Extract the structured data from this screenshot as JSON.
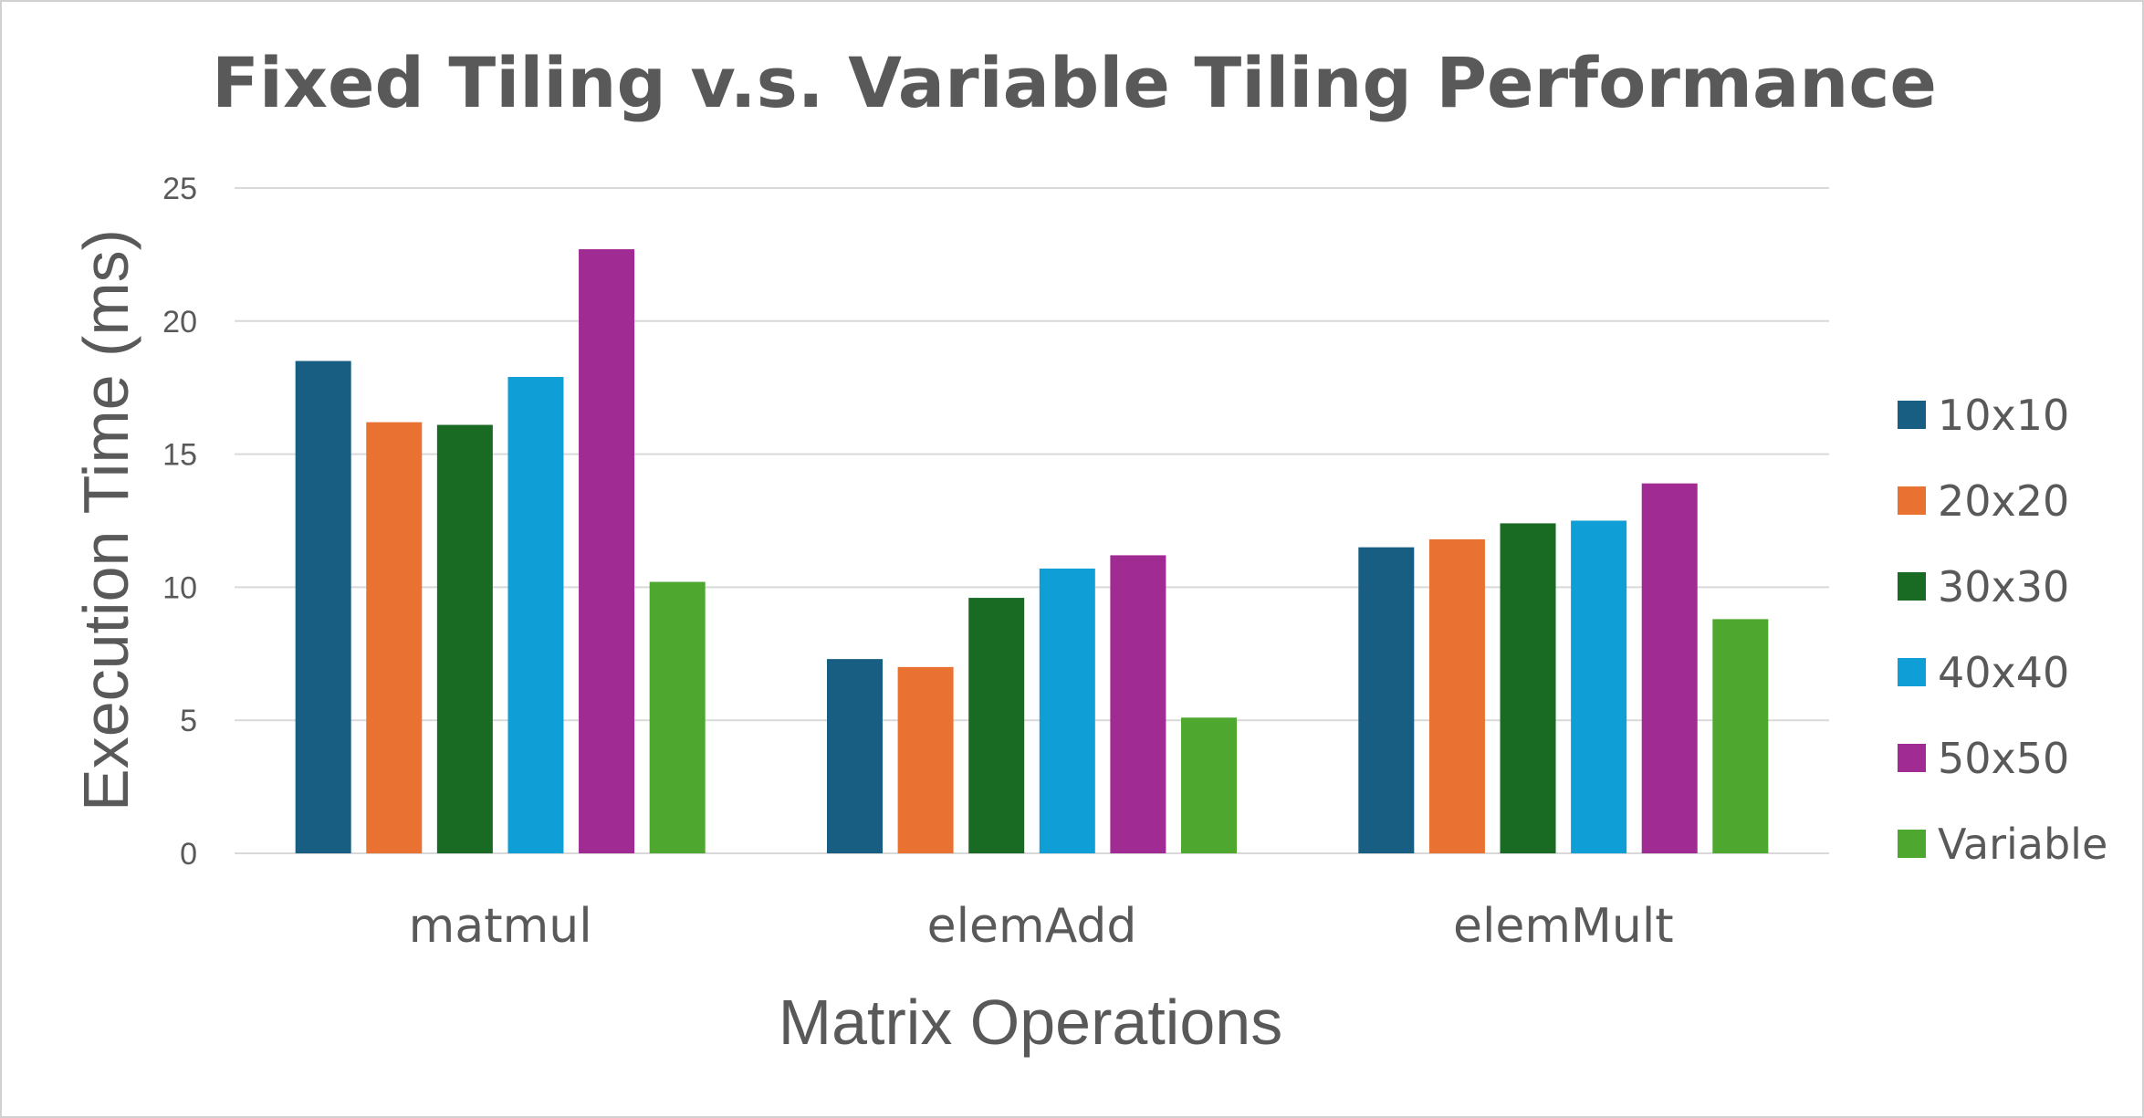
{
  "chart_data": {
    "type": "bar",
    "title": "Fixed Tiling v.s. Variable Tiling Performance",
    "xlabel": "Matrix Operations",
    "ylabel": "Execution Time (ms)",
    "ylim": [
      0,
      25
    ],
    "yticks": [
      0,
      5,
      10,
      15,
      20,
      25
    ],
    "grid": true,
    "legend_position": "right",
    "categories": [
      "matmul",
      "elemAdd",
      "elemMult"
    ],
    "series": [
      {
        "name": "10x10",
        "color": "#175e82",
        "values": [
          18.5,
          7.3,
          11.5
        ]
      },
      {
        "name": "20x20",
        "color": "#e97132",
        "values": [
          16.2,
          7.0,
          11.8
        ]
      },
      {
        "name": "30x30",
        "color": "#196b24",
        "values": [
          16.1,
          9.6,
          12.4
        ]
      },
      {
        "name": "40x40",
        "color": "#0f9ed5",
        "values": [
          17.9,
          10.7,
          12.5
        ]
      },
      {
        "name": "50x50",
        "color": "#a02b93",
        "values": [
          22.7,
          11.2,
          13.9
        ]
      },
      {
        "name": "Variable",
        "color": "#4ea72e",
        "values": [
          10.2,
          5.1,
          8.8
        ]
      }
    ]
  }
}
